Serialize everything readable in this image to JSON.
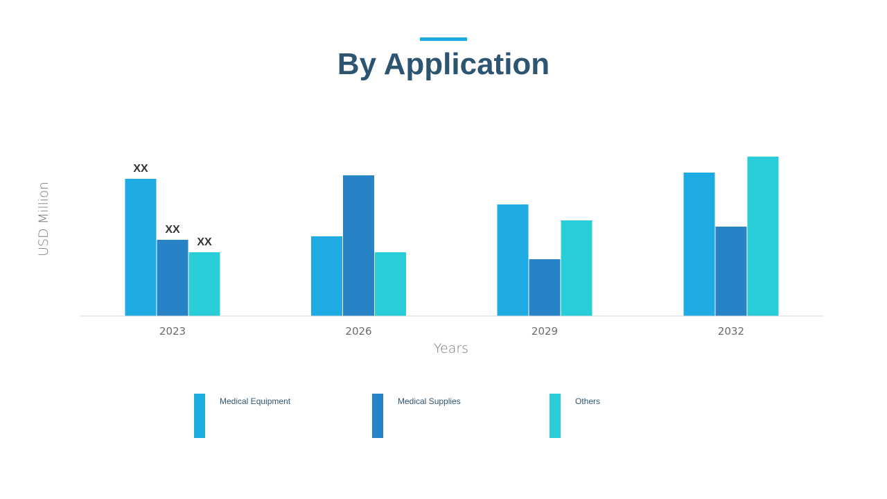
{
  "header": {
    "title": "By Application"
  },
  "colors": {
    "accent": "#1fa9e1",
    "title": "#2d5470"
  },
  "chart_data": {
    "type": "bar",
    "title": "By Application",
    "xlabel": "Years",
    "ylabel": "USD Million",
    "categories": [
      "2023",
      "2026",
      "2029",
      "2032"
    ],
    "ylim": [
      0,
      260
    ],
    "grid": false,
    "legend_position": "bottom",
    "series": [
      {
        "name": "Medical Equipment",
        "color": "#1eaae2",
        "values": [
          198,
          115,
          161,
          207
        ],
        "data_labels": [
          "XX",
          "",
          "",
          ""
        ]
      },
      {
        "name": "Medical Supplies",
        "color": "#2782c6",
        "values": [
          110,
          203,
          82,
          129
        ],
        "data_labels": [
          "XX",
          "",
          "",
          ""
        ]
      },
      {
        "name": "Others",
        "color": "#28cdd8",
        "values": [
          92,
          92,
          138,
          230
        ],
        "data_labels": [
          "XX",
          "",
          "",
          ""
        ]
      }
    ]
  }
}
